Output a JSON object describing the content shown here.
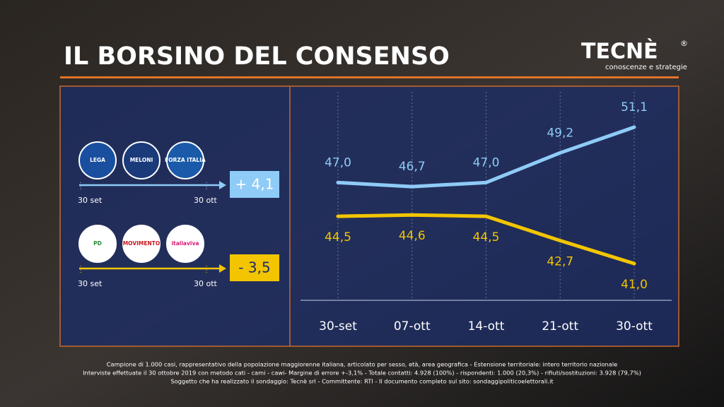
{
  "header": {
    "title": "IL BORSINO DEL CONSENSO",
    "brand": "TECNÈ",
    "brand_mark": "®",
    "brand_tagline": "conoscenze e strategie"
  },
  "coalitions": [
    {
      "parties": [
        "LEGA",
        "MELONI",
        "FORZA ITALIA"
      ],
      "change": "+ 4,1",
      "start": "30 set",
      "end": "30 ott",
      "color": "#8fcbf7"
    },
    {
      "parties": [
        "PD",
        "MOVIMENTO",
        "italiaviva"
      ],
      "change": "- 3,5",
      "start": "30 set",
      "end": "30 ott",
      "color": "#f2c500"
    }
  ],
  "chart_data": {
    "type": "line",
    "categories": [
      "30-set",
      "07-ott",
      "14-ott",
      "21-ott",
      "30-ott"
    ],
    "series": [
      {
        "color": "#8fcbf7",
        "values": [
          47.0,
          46.7,
          47.0,
          49.2,
          51.1
        ],
        "value_labels": [
          "47,0",
          "46,7",
          "47,0",
          "49,2",
          "51,1"
        ]
      },
      {
        "color": "#f2c500",
        "values": [
          44.5,
          44.6,
          44.5,
          42.7,
          41.0
        ],
        "value_labels": [
          "44,5",
          "44,6",
          "44,5",
          "42,7",
          "41,0"
        ]
      }
    ]
  },
  "footer": [
    "Campione di 1.000 casi, rappresentativo della popolazione maggiorenne italiana, articolato per sesso, età, area geografica - Estensione territoriale: intero territorio nazionale",
    "Interviste effettuate il 30 ottobre 2019 con metodo cati - cami - cawi- Margine di errore +-3,1% - Totale contatti: 4.928 (100%) - rispondenti: 1.000 (20,3%) - rifiuti/sostituzioni: 3.928 (79,7%)",
    "Soggetto che ha realizzato il sondaggio: Tecnè srl - Committente: RTI - Il documento completo sul sito: sondaggipoliticoelettorali.it"
  ]
}
